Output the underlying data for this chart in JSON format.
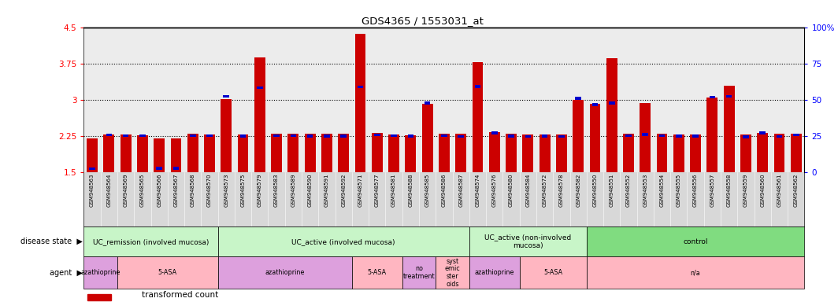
{
  "title": "GDS4365 / 1553031_at",
  "ylim_left": [
    1.5,
    4.5
  ],
  "yticks_left": [
    1.5,
    2.25,
    3.0,
    3.75,
    4.5
  ],
  "ytick_labels_left": [
    "1.5",
    "2.25",
    "3",
    "3.75",
    "4.5"
  ],
  "yticks_right": [
    0,
    25,
    50,
    75,
    100
  ],
  "ytick_labels_right": [
    "0",
    "25",
    "50",
    "75",
    "100%"
  ],
  "hlines": [
    2.25,
    3.0,
    3.75
  ],
  "samples": [
    "GSM948563",
    "GSM948564",
    "GSM948569",
    "GSM948565",
    "GSM948566",
    "GSM948567",
    "GSM948568",
    "GSM948570",
    "GSM948573",
    "GSM948575",
    "GSM948579",
    "GSM948583",
    "GSM948589",
    "GSM948590",
    "GSM948591",
    "GSM948592",
    "GSM948571",
    "GSM948577",
    "GSM948581",
    "GSM948588",
    "GSM948585",
    "GSM948586",
    "GSM948587",
    "GSM948574",
    "GSM948576",
    "GSM948580",
    "GSM948584",
    "GSM948572",
    "GSM948578",
    "GSM948582",
    "GSM948550",
    "GSM948551",
    "GSM948552",
    "GSM948553",
    "GSM948554",
    "GSM948555",
    "GSM948556",
    "GSM948557",
    "GSM948558",
    "GSM948559",
    "GSM948560",
    "GSM948561",
    "GSM948562"
  ],
  "red_values": [
    2.19,
    2.28,
    2.28,
    2.27,
    2.19,
    2.19,
    2.29,
    2.28,
    3.01,
    2.28,
    3.87,
    2.3,
    2.29,
    2.29,
    2.29,
    2.29,
    4.37,
    2.31,
    2.28,
    2.27,
    2.91,
    2.29,
    2.29,
    3.77,
    2.33,
    2.29,
    2.28,
    2.28,
    2.28,
    3.0,
    2.92,
    3.86,
    2.29,
    2.93,
    2.29,
    2.28,
    2.28,
    3.04,
    3.29,
    2.28,
    2.31,
    2.29,
    2.29
  ],
  "blue_values": [
    1.57,
    2.27,
    2.26,
    2.26,
    1.58,
    1.58,
    2.26,
    2.26,
    3.07,
    2.25,
    3.25,
    2.26,
    2.26,
    2.25,
    2.25,
    2.25,
    3.26,
    2.27,
    2.26,
    2.25,
    2.93,
    2.26,
    2.24,
    3.27,
    2.31,
    2.25,
    2.24,
    2.25,
    2.24,
    3.03,
    2.9,
    2.93,
    2.26,
    2.28,
    2.26,
    2.25,
    2.25,
    3.05,
    3.07,
    2.23,
    2.31,
    2.24,
    2.27
  ],
  "disease_ranges": [
    [
      0,
      8
    ],
    [
      8,
      23
    ],
    [
      23,
      30
    ],
    [
      30,
      43
    ]
  ],
  "disease_labels": [
    "UC_remission (involved mucosa)",
    "UC_active (involved mucosa)",
    "UC_active (non-involved\nmucosa)",
    "control"
  ],
  "disease_colors": [
    "#C8F5C8",
    "#C8F5C8",
    "#C8F5C8",
    "#80DC80"
  ],
  "agent_ranges": [
    [
      0,
      2
    ],
    [
      2,
      8
    ],
    [
      8,
      16
    ],
    [
      16,
      19
    ],
    [
      19,
      21
    ],
    [
      21,
      23
    ],
    [
      23,
      26
    ],
    [
      26,
      30
    ],
    [
      30,
      43
    ]
  ],
  "agent_labels": [
    "azathioprine",
    "5-ASA",
    "azathioprine",
    "5-ASA",
    "no\ntreatment",
    "syst\nemic\nster\noids",
    "azathioprine",
    "5-ASA",
    "n/a"
  ],
  "agent_colors": [
    "#DDA0DD",
    "#FFB6C1",
    "#DDA0DD",
    "#FFB6C1",
    "#DDA0DD",
    "#FFB6C1",
    "#DDA0DD",
    "#FFB6C1",
    "#FFB6C1"
  ],
  "bar_color": "#CC0000",
  "blue_color": "#0000CC",
  "chart_bg": "#ECECEC",
  "xtick_bg": "#D8D8D8"
}
